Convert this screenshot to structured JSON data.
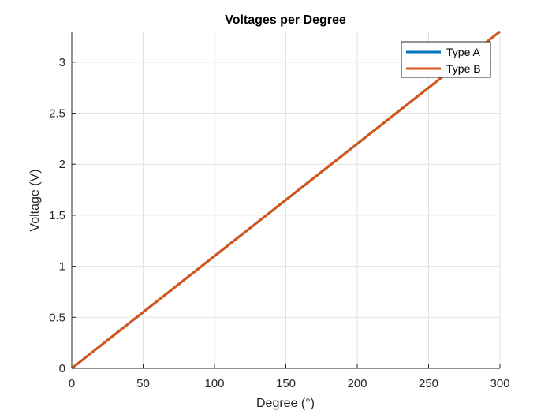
{
  "chart_data": {
    "type": "line",
    "title": "Voltages per Degree",
    "xlabel": "Degree (°)",
    "ylabel": "Voltage (V)",
    "xlim": [
      0,
      300
    ],
    "ylim": [
      0,
      3.3
    ],
    "xticks": [
      0,
      50,
      100,
      150,
      200,
      250,
      300
    ],
    "xtick_labels": [
      "0",
      "50",
      "100",
      "150",
      "200",
      "250",
      "300"
    ],
    "yticks": [
      0,
      0.5,
      1,
      1.5,
      2,
      2.5,
      3
    ],
    "ytick_labels": [
      "0",
      "0.5",
      "1",
      "1.5",
      "2",
      "2.5",
      "3"
    ],
    "grid": true,
    "legend_position": "top-right",
    "series": [
      {
        "name": "Type A",
        "color": "#0072BD",
        "x": [
          0,
          300
        ],
        "y": [
          0,
          3.3
        ]
      },
      {
        "name": "Type B",
        "color": "#D95319",
        "x": [
          0,
          300
        ],
        "y": [
          0,
          3.3
        ]
      }
    ]
  }
}
